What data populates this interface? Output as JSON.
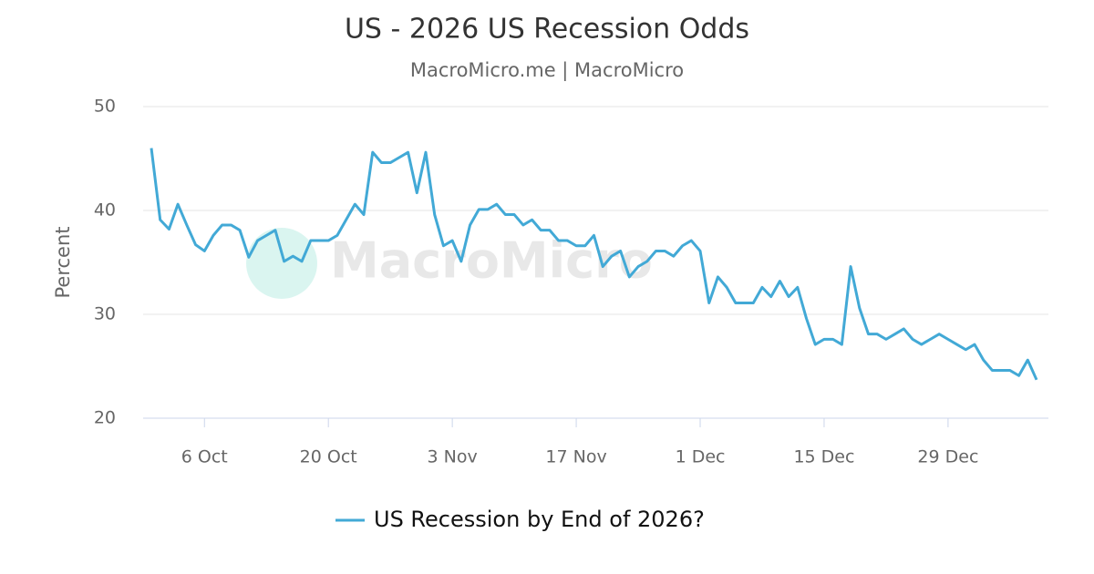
{
  "chart_data": {
    "type": "line",
    "title": "US - 2026 US Recession Odds",
    "subtitle": "MacroMicro.me | MacroMicro",
    "watermark": "MacroMicro",
    "y_label": "Percent",
    "x": [
      "30 Sep",
      "1 Oct",
      "2 Oct",
      "3 Oct",
      "4 Oct",
      "5 Oct",
      "6 Oct",
      "7 Oct",
      "8 Oct",
      "9 Oct",
      "10 Oct",
      "11 Oct",
      "12 Oct",
      "13 Oct",
      "14 Oct",
      "15 Oct",
      "16 Oct",
      "17 Oct",
      "18 Oct",
      "19 Oct",
      "20 Oct",
      "21 Oct",
      "22 Oct",
      "23 Oct",
      "24 Oct",
      "25 Oct",
      "26 Oct",
      "27 Oct",
      "28 Oct",
      "29 Oct",
      "30 Oct",
      "31 Oct",
      "1 Nov",
      "2 Nov",
      "3 Nov",
      "4 Nov",
      "5 Nov",
      "6 Nov",
      "7 Nov",
      "8 Nov",
      "9 Nov",
      "10 Nov",
      "11 Nov",
      "12 Nov",
      "13 Nov",
      "14 Nov",
      "15 Nov",
      "16 Nov",
      "17 Nov",
      "18 Nov",
      "19 Nov",
      "20 Nov",
      "21 Nov",
      "22 Nov",
      "23 Nov",
      "24 Nov",
      "25 Nov",
      "26 Nov",
      "27 Nov",
      "28 Nov",
      "29 Nov",
      "30 Nov",
      "1 Dec",
      "2 Dec",
      "3 Dec",
      "4 Dec",
      "5 Dec",
      "6 Dec",
      "7 Dec",
      "8 Dec",
      "9 Dec",
      "10 Dec",
      "11 Dec",
      "12 Dec",
      "13 Dec",
      "14 Dec",
      "15 Dec",
      "16 Dec",
      "17 Dec",
      "18 Dec",
      "19 Dec",
      "20 Dec",
      "21 Dec",
      "22 Dec",
      "23 Dec",
      "24 Dec",
      "25 Dec",
      "26 Dec",
      "27 Dec",
      "28 Dec",
      "29 Dec",
      "30 Dec",
      "31 Dec",
      "1 Jan",
      "2 Jan",
      "3 Jan",
      "4 Jan",
      "5 Jan",
      "6 Jan",
      "7 Jan",
      "8 Jan"
    ],
    "series": [
      {
        "name": "US Recession by End of 2026?",
        "color": "#42a9d6",
        "values": [
          46,
          39.1,
          38.2,
          40.6,
          38.6,
          36.7,
          36.1,
          37.6,
          38.6,
          38.6,
          38.1,
          35.5,
          37.1,
          37.6,
          38.1,
          35.1,
          35.6,
          35.1,
          37.1,
          37.1,
          37.1,
          37.6,
          39.1,
          40.6,
          39.6,
          45.6,
          44.6,
          44.6,
          45.1,
          45.6,
          41.7,
          45.6,
          39.6,
          36.6,
          37.1,
          35.1,
          38.6,
          40.1,
          40.1,
          40.6,
          39.6,
          39.6,
          38.6,
          39.1,
          38.1,
          38.1,
          37.1,
          37.1,
          36.6,
          36.6,
          37.6,
          34.6,
          35.6,
          36.1,
          33.6,
          34.6,
          35.1,
          36.1,
          36.1,
          35.6,
          36.6,
          37.1,
          36.1,
          31.1,
          33.6,
          32.6,
          31.1,
          31.1,
          31.1,
          32.6,
          31.7,
          33.2,
          31.7,
          32.6,
          29.6,
          27.1,
          27.6,
          27.6,
          27.1,
          34.6,
          30.6,
          28.1,
          28.1,
          27.6,
          28.1,
          28.6,
          27.6,
          27.1,
          27.6,
          28.1,
          27.6,
          27.1,
          26.6,
          27.1,
          25.6,
          24.6,
          24.6,
          24.6,
          24.1,
          25.6,
          23.7
        ]
      }
    ],
    "xticks": [
      "6 Oct",
      "20 Oct",
      "3 Nov",
      "17 Nov",
      "1 Dec",
      "15 Dec",
      "29 Dec"
    ],
    "ylim": [
      20,
      50
    ],
    "yticks": [
      20,
      30,
      40,
      50
    ],
    "grid": true
  }
}
